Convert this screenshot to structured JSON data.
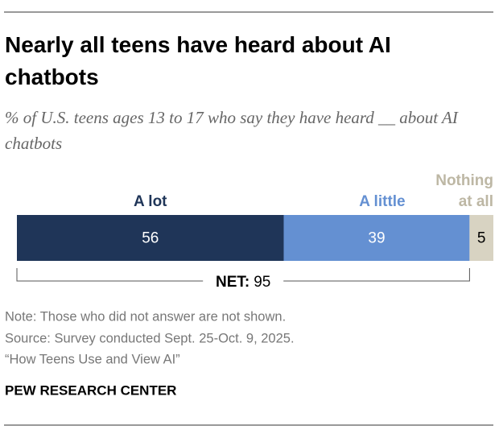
{
  "chart_data": {
    "type": "stacked-bar",
    "title": "Nearly all teens have heard about AI chatbots",
    "subtitle": "% of U.S. teens ages 13 to 17 who say they have heard __ about AI chatbots",
    "series": [
      {
        "name": "A lot",
        "color": "#1f3558",
        "values": [
          56
        ]
      },
      {
        "name": "A little",
        "color": "#6490d2",
        "values": [
          39
        ]
      },
      {
        "name": "Nothing at all",
        "color": "#d8d3c2",
        "values": [
          5
        ]
      }
    ],
    "net": {
      "label": "NET:",
      "value": 95
    },
    "notes": [
      "Note: Those who did not answer are not shown.",
      "Source: Survey conducted Sept. 25-Oct. 9, 2025.",
      "“How Teens Use and View AI”"
    ],
    "source": "PEW RESEARCH CENTER"
  }
}
